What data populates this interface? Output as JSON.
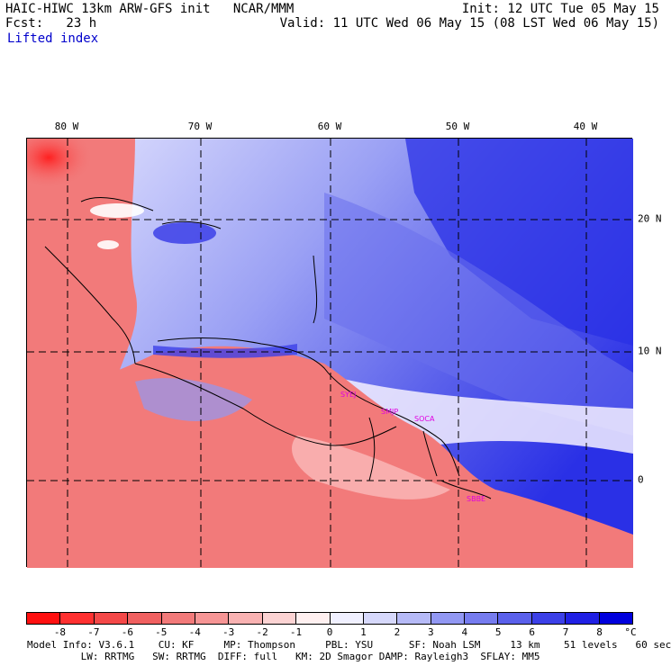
{
  "header": {
    "line1_left": "HAIC-HIWC 13km ARW-GFS init   NCAR/MMM",
    "line1_right": "Init: 12 UTC Tue 05 May 15",
    "line2_left": "Fcst:   23 h",
    "line2_right": "Valid: 11 UTC Wed 06 May 15 (08 LST Wed 06 May 15)",
    "field_name": "Lifted index"
  },
  "map": {
    "longitude_labels": [
      "80 W",
      "70 W",
      "60 W",
      "50 W",
      "40 W"
    ],
    "latitude_labels": [
      "20 N",
      "10 N",
      "0"
    ],
    "stations": [
      "SYEJ",
      "SMJP",
      "SOCA",
      "SBBE"
    ],
    "colors": {
      "ocean_cool": "#4d55ee",
      "land_warm": "#f27a7a",
      "neutral": "#ffffff"
    }
  },
  "colorbar": {
    "tick_labels": [
      "-8",
      "-7",
      "-6",
      "-5",
      "-4",
      "-3",
      "-2",
      "-1",
      "0",
      "1",
      "2",
      "3",
      "4",
      "5",
      "6",
      "7",
      "8"
    ],
    "unit": "°C",
    "colors": [
      "#ff1010",
      "#ff3030",
      "#f44848",
      "#f06060",
      "#f27a7a",
      "#f69595",
      "#f9b2b2",
      "#fcd3d3",
      "#fff0f0",
      "#f0f0ff",
      "#d6d8fb",
      "#b6baf7",
      "#9298f3",
      "#767cef",
      "#5a60eb",
      "#3c40e8",
      "#2020e4",
      "#0000dd"
    ]
  },
  "footer": {
    "line1": "Model Info: V3.6.1    CU: KF     MP: Thompson     PBL: YSU      SF: Noah LSM     13 km    51 levels   60 sec",
    "line2": "         LW: RRTMG   SW: RRTMG  DIFF: full   KM: 2D Smagor DAMP: Rayleigh3  SFLAY: MM5"
  }
}
